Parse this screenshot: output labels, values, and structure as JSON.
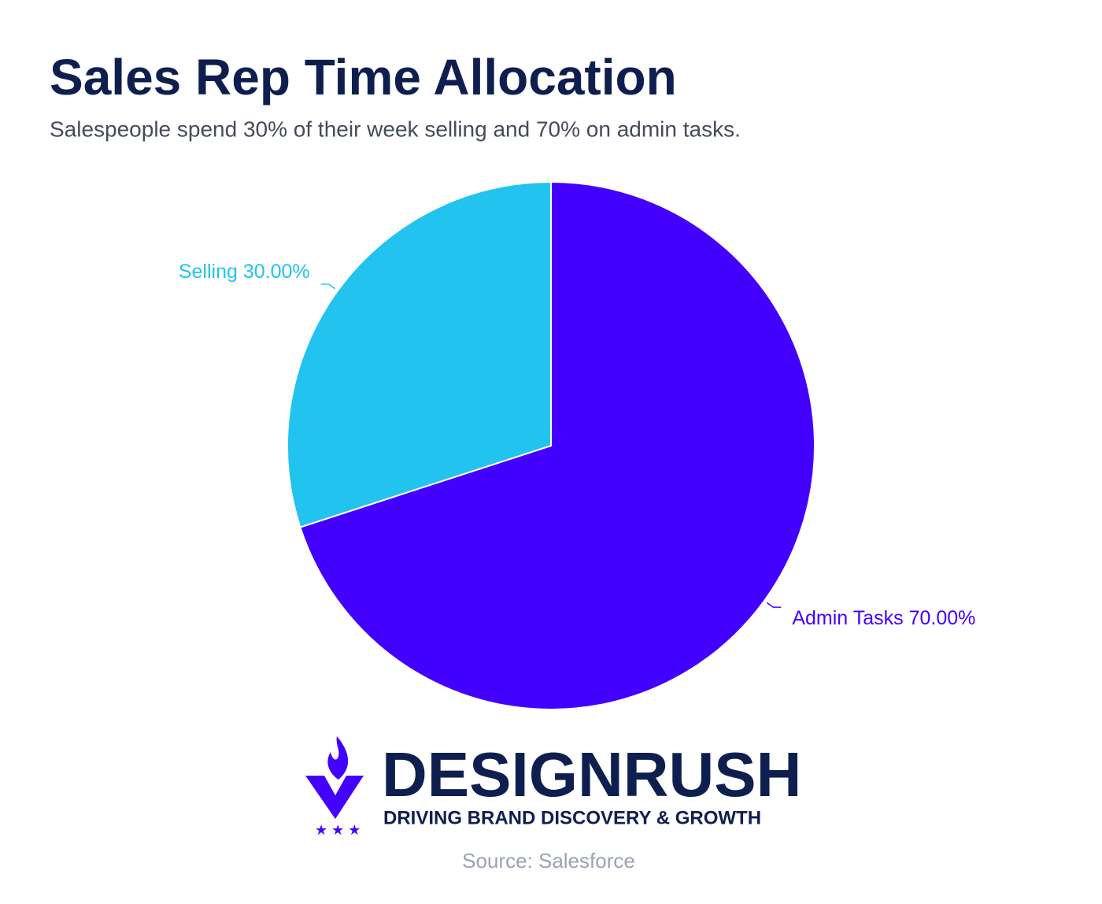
{
  "chart_data": {
    "type": "pie",
    "title": "Sales Rep Time Allocation",
    "subtitle": "Salespeople spend 30% of their week selling and 70% on admin tasks.",
    "categories": [
      "Admin Tasks",
      "Selling"
    ],
    "values": [
      70,
      30
    ],
    "value_labels": [
      "70.00%",
      "30.00%"
    ],
    "colors": [
      "#4400ff",
      "#22c3ee"
    ]
  },
  "branding": {
    "name": "DESIGNRUSH",
    "tagline": "DRIVING BRAND DISCOVERY & GROWTH"
  },
  "source": "Source: Salesforce"
}
